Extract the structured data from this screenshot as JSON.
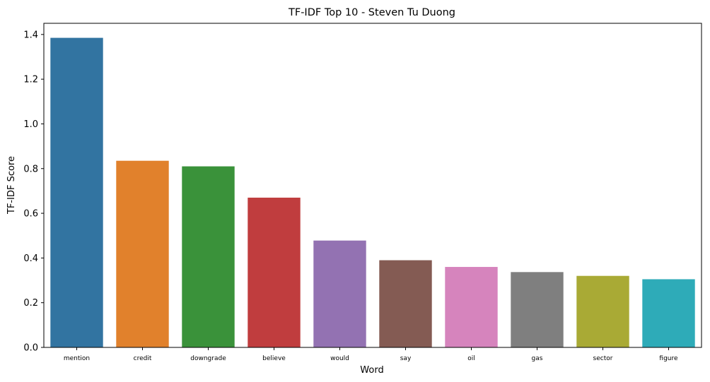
{
  "chart_data": {
    "type": "bar",
    "title": "TF-IDF Top 10 - Steven Tu Duong",
    "xlabel": "Word",
    "ylabel": "TF-IDF Score",
    "categories": [
      "mention",
      "credit",
      "downgrade",
      "believe",
      "would",
      "say",
      "oil",
      "gas",
      "sector",
      "figure"
    ],
    "values": [
      1.385,
      0.835,
      0.81,
      0.67,
      0.478,
      0.39,
      0.36,
      0.337,
      0.32,
      0.305
    ],
    "colors": [
      "#3274a1",
      "#e1812c",
      "#3a923a",
      "#c03d3e",
      "#9372b2",
      "#845b53",
      "#d684bd",
      "#7f7f7f",
      "#a9aa35",
      "#2eabb8"
    ],
    "ylim": [
      0,
      1.45
    ],
    "yticks": [
      0.0,
      0.2,
      0.4,
      0.6,
      0.8,
      1.0,
      1.2,
      1.4
    ],
    "ytick_labels": [
      "0.0",
      "0.2",
      "0.4",
      "0.6",
      "0.8",
      "1.0",
      "1.2",
      "1.4"
    ],
    "grid": false,
    "legend": "none"
  }
}
